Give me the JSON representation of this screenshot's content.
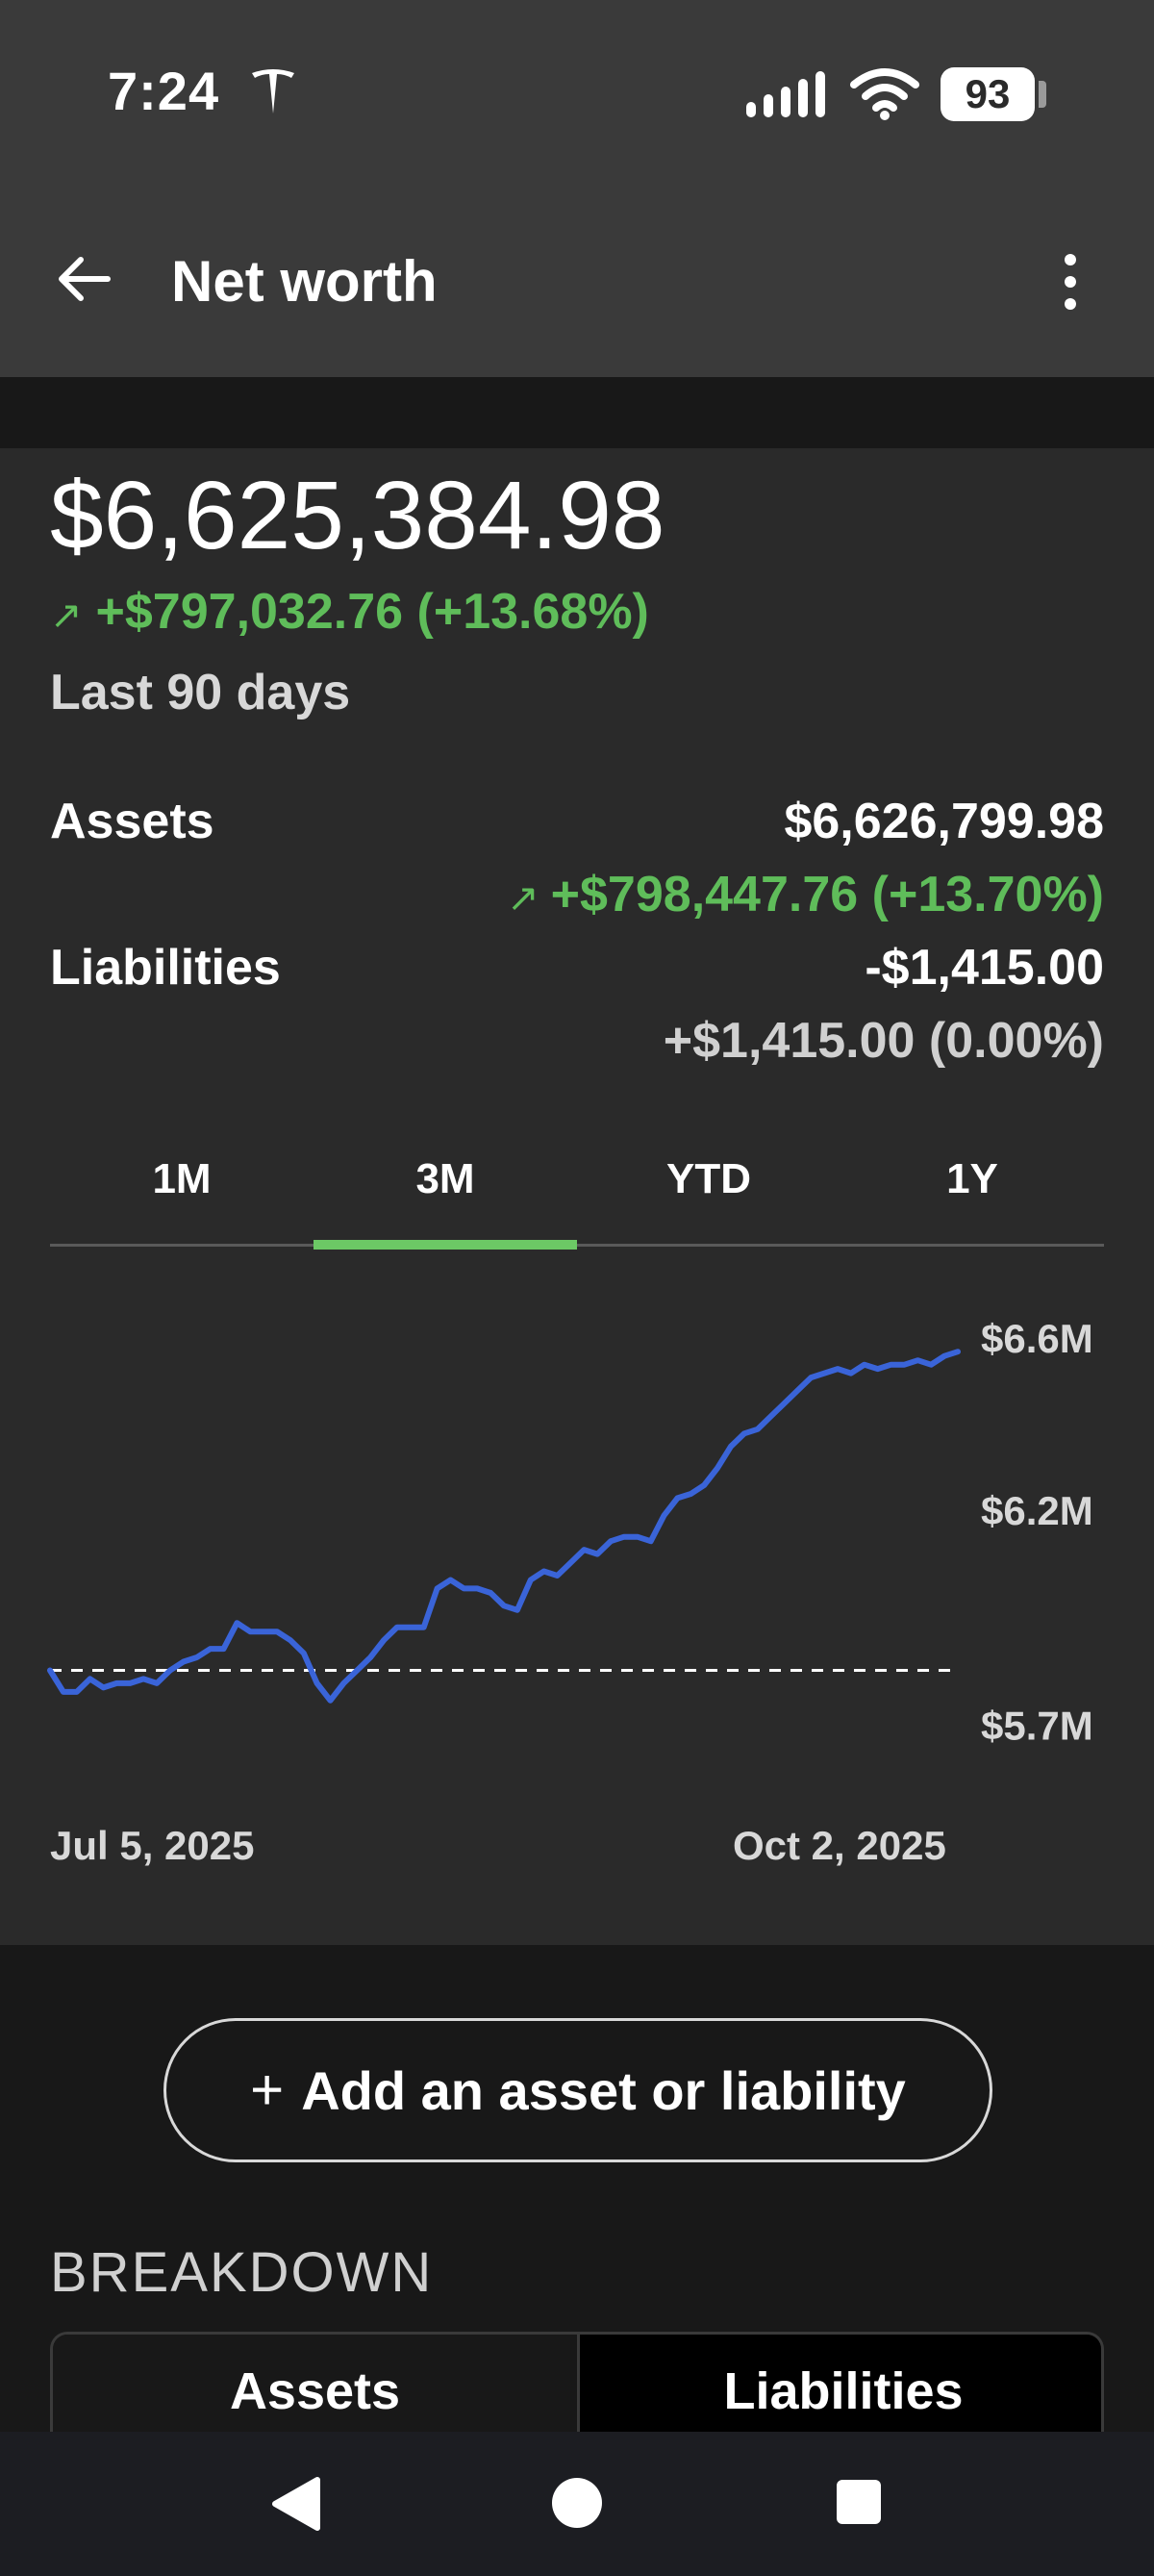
{
  "status_bar": {
    "time": "7:24",
    "battery": "93",
    "icons": [
      "tesla-icon",
      "signal-icon",
      "wifi-icon",
      "battery-icon"
    ]
  },
  "header": {
    "title": "Net worth",
    "icons": [
      "back-arrow-icon",
      "more-vertical-icon"
    ]
  },
  "summary": {
    "net_worth": "$6,625,384.98",
    "change": "+$797,032.76 (+13.68%)",
    "change_arrow": "↗",
    "period": "Last 90 days"
  },
  "assets": {
    "label": "Assets",
    "value": "$6,626,799.98",
    "change": "+$798,447.76 (+13.70%)",
    "change_arrow": "↗"
  },
  "liabilities": {
    "label": "Liabilities",
    "value": "-$1,415.00",
    "change": "+$1,415.00 (0.00%)"
  },
  "range_tabs": {
    "items": [
      "1M",
      "3M",
      "YTD",
      "1Y"
    ],
    "active": "3M"
  },
  "chart_data": {
    "type": "line",
    "title": "",
    "xlabel": "",
    "ylabel": "",
    "x_start_label": "Jul 5, 2025",
    "x_end_label": "Oct 2, 2025",
    "y_tick_labels": [
      "$6.6M",
      "$6.2M",
      "$5.7M"
    ],
    "ylim": [
      5.63,
      6.68
    ],
    "baseline": 5.83,
    "line_color": "#3a64d8",
    "series": [
      {
        "values": [
          5.83,
          5.78,
          5.78,
          5.81,
          5.79,
          5.8,
          5.8,
          5.81,
          5.8,
          5.83,
          5.85,
          5.86,
          5.88,
          5.88,
          5.94,
          5.92,
          5.92,
          5.92,
          5.9,
          5.87,
          5.8,
          5.76,
          5.8,
          5.83,
          5.86,
          5.9,
          5.93,
          5.93,
          5.93,
          6.02,
          6.04,
          6.02,
          6.02,
          6.01,
          5.98,
          5.97,
          6.04,
          6.06,
          6.05,
          6.08,
          6.11,
          6.1,
          6.13,
          6.14,
          6.14,
          6.13,
          6.19,
          6.23,
          6.24,
          6.26,
          6.3,
          6.35,
          6.38,
          6.39,
          6.42,
          6.45,
          6.48,
          6.51,
          6.52,
          6.53,
          6.52,
          6.54,
          6.53,
          6.54,
          6.54,
          6.55,
          6.54,
          6.56,
          6.57
        ]
      }
    ]
  },
  "actions": {
    "add_label": "Add an asset or liability",
    "add_plus": "+"
  },
  "breakdown": {
    "title": "BREAKDOWN",
    "segments": [
      "Assets",
      "Liabilities"
    ]
  },
  "navbar": {
    "icons": [
      "nav-back-icon",
      "nav-home-icon",
      "nav-recents-icon"
    ]
  }
}
